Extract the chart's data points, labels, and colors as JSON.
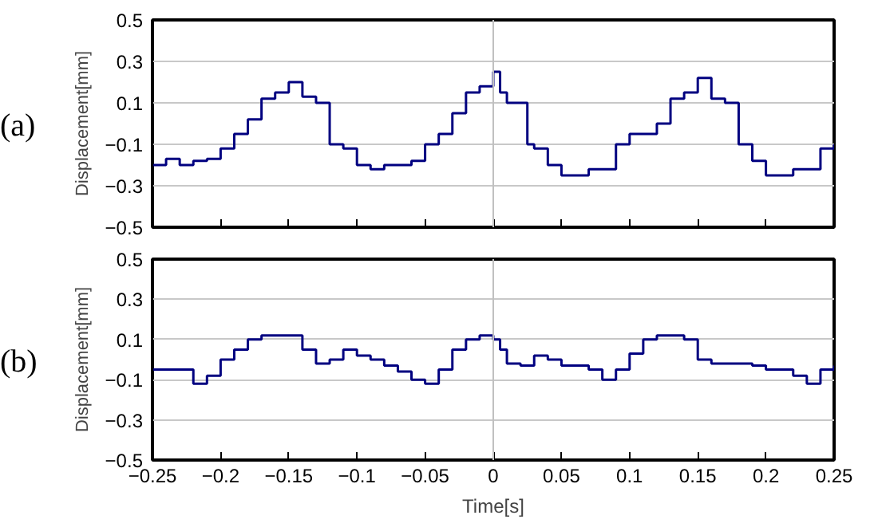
{
  "chart_data": [
    {
      "type": "step",
      "ylabel": "Displacement[mm]",
      "annotations": [
        "(a)"
      ],
      "xlim": [
        -0.25,
        0.25
      ],
      "xticks": [
        -0.25,
        -0.2,
        -0.15,
        -0.1,
        -0.05,
        0,
        0.05,
        0.1,
        0.15,
        0.2,
        0.25
      ],
      "ylim": [
        -0.5,
        0.5
      ],
      "yticks": [
        -0.5,
        -0.3,
        -0.1,
        0.1,
        0.3,
        0.5
      ],
      "grid": "y",
      "tick_labels": "y",
      "line_style": "solid",
      "ref_lines": [
        {
          "axis": "x",
          "value": 0,
          "label": null,
          "color": "#c0c0c0"
        }
      ],
      "x": [
        -0.25,
        -0.24,
        -0.23,
        -0.22,
        -0.21,
        -0.2,
        -0.19,
        -0.18,
        -0.17,
        -0.16,
        -0.15,
        -0.14,
        -0.13,
        -0.12,
        -0.11,
        -0.1,
        -0.09,
        -0.08,
        -0.07,
        -0.06,
        -0.05,
        -0.04,
        -0.03,
        -0.02,
        -0.01,
        0,
        0.005,
        0.01,
        0.02,
        0.025,
        0.03,
        0.04,
        0.05,
        0.06,
        0.07,
        0.08,
        0.09,
        0.1,
        0.11,
        0.12,
        0.13,
        0.14,
        0.15,
        0.16,
        0.17,
        0.18,
        0.19,
        0.2,
        0.21,
        0.22,
        0.23,
        0.24,
        0.25
      ],
      "series": [
        {
          "color": "#000080",
          "values": [
            -0.2,
            -0.17,
            -0.2,
            -0.18,
            -0.17,
            -0.12,
            -0.05,
            0.02,
            0.12,
            0.15,
            0.2,
            0.13,
            0.1,
            -0.1,
            -0.12,
            -0.2,
            -0.22,
            -0.2,
            -0.2,
            -0.18,
            -0.1,
            -0.05,
            0.05,
            0.15,
            0.18,
            0.25,
            0.15,
            0.1,
            0.1,
            -0.1,
            -0.12,
            -0.2,
            -0.25,
            -0.25,
            -0.22,
            -0.22,
            -0.1,
            -0.05,
            -0.05,
            0.0,
            0.12,
            0.15,
            0.22,
            0.12,
            0.1,
            -0.1,
            -0.18,
            -0.25,
            -0.25,
            -0.22,
            -0.22,
            -0.12,
            -0.1
          ]
        }
      ]
    },
    {
      "type": "step",
      "ylabel": "Displacement[mm]",
      "xlabel": "Time[s]",
      "annotations": [
        "(b)"
      ],
      "xlim": [
        -0.25,
        0.25
      ],
      "xticks": [
        -0.25,
        -0.2,
        -0.15,
        -0.1,
        -0.05,
        0,
        0.05,
        0.1,
        0.15,
        0.2,
        0.25
      ],
      "ylim": [
        -0.5,
        0.5
      ],
      "yticks": [
        -0.5,
        -0.3,
        -0.1,
        0.1,
        0.3,
        0.5
      ],
      "grid": "y",
      "line_style": "solid",
      "ref_lines": [
        {
          "axis": "x",
          "value": 0,
          "label": null,
          "color": "#c0c0c0"
        }
      ],
      "x": [
        -0.25,
        -0.24,
        -0.23,
        -0.22,
        -0.21,
        -0.2,
        -0.19,
        -0.18,
        -0.17,
        -0.16,
        -0.15,
        -0.14,
        -0.13,
        -0.12,
        -0.11,
        -0.1,
        -0.09,
        -0.08,
        -0.07,
        -0.06,
        -0.05,
        -0.04,
        -0.03,
        -0.02,
        -0.01,
        0,
        0.005,
        0.01,
        0.02,
        0.03,
        0.04,
        0.05,
        0.06,
        0.07,
        0.08,
        0.09,
        0.1,
        0.11,
        0.12,
        0.13,
        0.14,
        0.15,
        0.16,
        0.17,
        0.18,
        0.19,
        0.2,
        0.21,
        0.22,
        0.23,
        0.24,
        0.25
      ],
      "series": [
        {
          "color": "#000080",
          "values": [
            -0.05,
            -0.05,
            -0.05,
            -0.12,
            -0.08,
            0.0,
            0.05,
            0.1,
            0.12,
            0.12,
            0.12,
            0.05,
            -0.02,
            0.0,
            0.05,
            0.02,
            0.0,
            -0.03,
            -0.06,
            -0.1,
            -0.12,
            -0.05,
            0.05,
            0.1,
            0.12,
            0.1,
            0.05,
            -0.02,
            -0.03,
            0.02,
            0.0,
            -0.03,
            -0.03,
            -0.05,
            -0.1,
            -0.05,
            0.03,
            0.1,
            0.12,
            0.12,
            0.1,
            0.0,
            -0.02,
            -0.02,
            -0.02,
            -0.03,
            -0.05,
            -0.05,
            -0.08,
            -0.12,
            -0.05,
            -0.03
          ]
        }
      ]
    }
  ]
}
